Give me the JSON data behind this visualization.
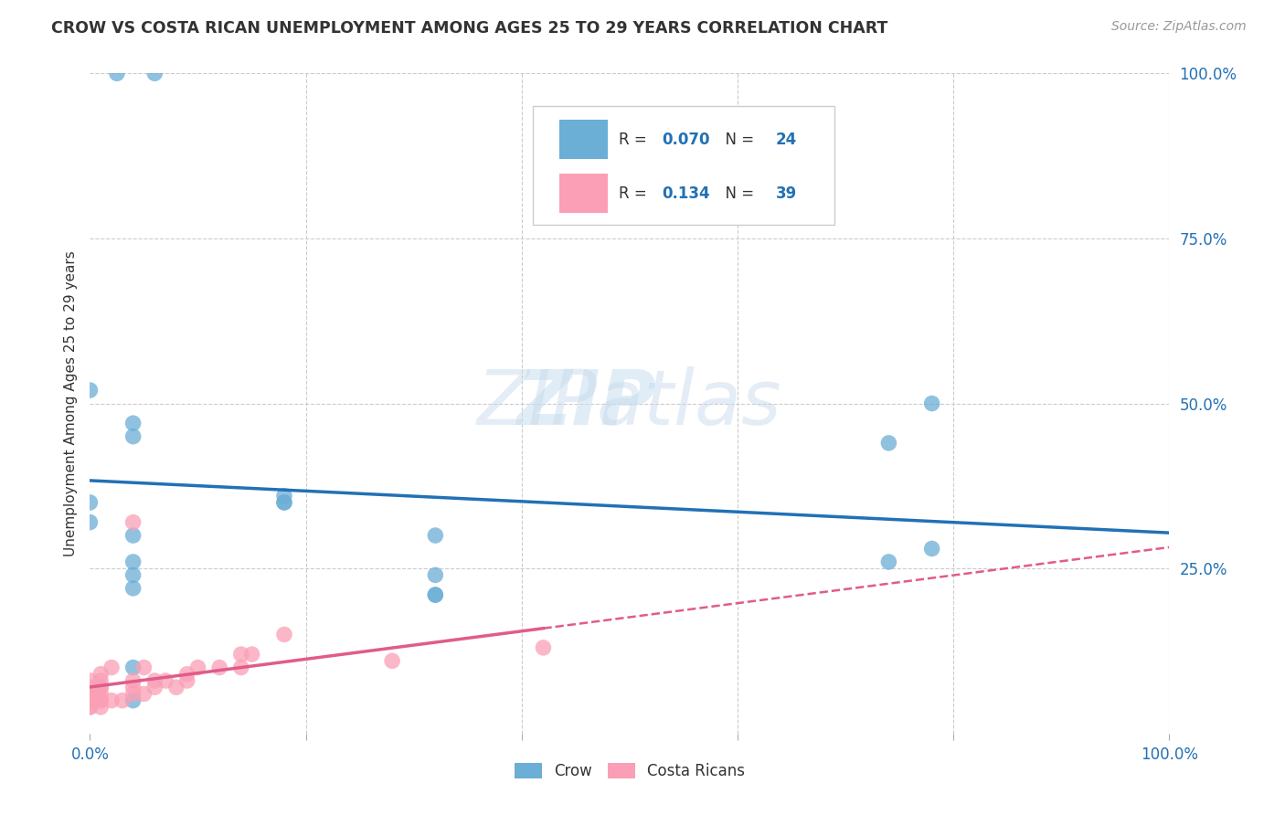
{
  "title": "CROW VS COSTA RICAN UNEMPLOYMENT AMONG AGES 25 TO 29 YEARS CORRELATION CHART",
  "source": "Source: ZipAtlas.com",
  "ylabel": "Unemployment Among Ages 25 to 29 years",
  "xlim": [
    0.0,
    1.0
  ],
  "ylim": [
    0.0,
    1.0
  ],
  "crow_color": "#6baed6",
  "cr_color": "#fa9fb5",
  "crow_line_color": "#2171b5",
  "cr_line_color": "#e05c8a",
  "crow_R": 0.07,
  "crow_N": 24,
  "cr_R": 0.134,
  "cr_N": 39,
  "grid_color": "#cccccc",
  "watermark_zip": "ZIP",
  "watermark_atlas": "atlas",
  "crow_points_x": [
    0.025,
    0.06,
    0.0,
    0.04,
    0.04,
    0.18,
    0.18,
    0.0,
    0.0,
    0.04,
    0.32,
    0.32,
    0.74,
    0.78,
    0.78,
    0.04,
    0.18,
    0.32,
    0.32,
    0.74,
    0.04,
    0.04,
    0.04,
    0.04
  ],
  "crow_points_y": [
    1.0,
    1.0,
    0.52,
    0.47,
    0.45,
    0.35,
    0.35,
    0.35,
    0.32,
    0.3,
    0.3,
    0.24,
    0.44,
    0.28,
    0.5,
    0.05,
    0.36,
    0.21,
    0.21,
    0.26,
    0.26,
    0.24,
    0.22,
    0.1
  ],
  "cr_points_x": [
    0.0,
    0.0,
    0.0,
    0.0,
    0.0,
    0.0,
    0.0,
    0.0,
    0.01,
    0.01,
    0.01,
    0.01,
    0.01,
    0.01,
    0.01,
    0.01,
    0.02,
    0.02,
    0.03,
    0.04,
    0.04,
    0.04,
    0.04,
    0.05,
    0.05,
    0.06,
    0.06,
    0.07,
    0.08,
    0.09,
    0.09,
    0.1,
    0.12,
    0.14,
    0.14,
    0.15,
    0.18,
    0.28,
    0.42
  ],
  "cr_points_y": [
    0.04,
    0.04,
    0.05,
    0.05,
    0.06,
    0.06,
    0.07,
    0.08,
    0.04,
    0.05,
    0.05,
    0.06,
    0.07,
    0.07,
    0.08,
    0.09,
    0.05,
    0.1,
    0.05,
    0.06,
    0.07,
    0.08,
    0.32,
    0.06,
    0.1,
    0.07,
    0.08,
    0.08,
    0.07,
    0.08,
    0.09,
    0.1,
    0.1,
    0.1,
    0.12,
    0.12,
    0.15,
    0.11,
    0.13
  ],
  "background_color": "#ffffff"
}
